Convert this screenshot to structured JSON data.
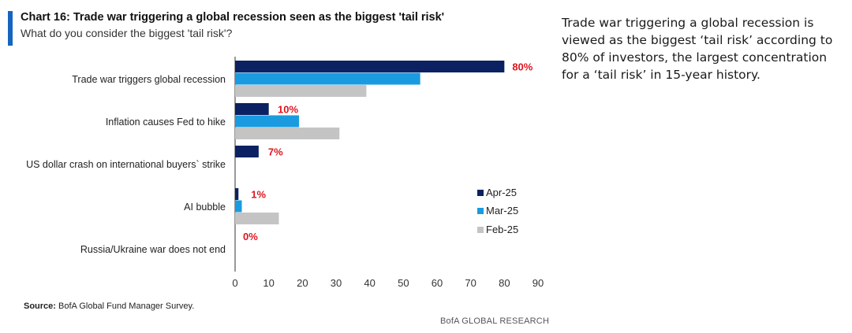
{
  "header": {
    "title": "Chart 16: Trade war triggering a global recession seen as the biggest 'tail risk'",
    "subtitle": "What do you consider the biggest 'tail risk'?"
  },
  "commentary": "Trade war triggering a global recession is viewed as the biggest ‘tail risk’ according to 80% of investors, the largest concentration for a ‘tail risk’ in 15-year history.",
  "footer": {
    "source_label": "Source:",
    "source_text": " BofA Global Fund Manager Survey.",
    "brand": "BofA GLOBAL RESEARCH"
  },
  "colors": {
    "accent": "#1565c0",
    "apr": "#0b2161",
    "mar": "#1a9be0",
    "feb": "#c4c4c4",
    "data_label": "#e0141e"
  },
  "chart_data": {
    "type": "bar",
    "orientation": "horizontal",
    "categories": [
      "Trade war triggers global recession",
      "Inflation causes Fed to hike",
      "US dollar crash on international buyers` strike",
      "AI bubble",
      "Russia/Ukraine war does not end"
    ],
    "series": [
      {
        "name": "Apr-25",
        "values": [
          80,
          10,
          7,
          1,
          0
        ]
      },
      {
        "name": "Mar-25",
        "values": [
          55,
          19,
          0,
          2,
          0
        ]
      },
      {
        "name": "Feb-25",
        "values": [
          39,
          31,
          0,
          13,
          0
        ]
      }
    ],
    "data_labels": [
      "80%",
      "10%",
      "7%",
      "1%",
      "0%"
    ],
    "xlim": [
      0,
      90
    ],
    "xticks": [
      0,
      10,
      20,
      30,
      40,
      50,
      60,
      70,
      80,
      90
    ],
    "grid": false,
    "legend_position": "right"
  }
}
